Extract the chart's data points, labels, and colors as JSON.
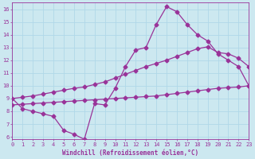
{
  "x": [
    0,
    1,
    2,
    3,
    4,
    5,
    6,
    7,
    8,
    9,
    10,
    11,
    12,
    13,
    14,
    15,
    16,
    17,
    18,
    19,
    20,
    21,
    22,
    23
  ],
  "y_main": [
    9.0,
    8.2,
    8.0,
    7.8,
    7.6,
    6.5,
    6.2,
    5.8,
    8.6,
    8.5,
    9.8,
    11.5,
    12.8,
    13.0,
    14.8,
    16.2,
    15.8,
    14.8,
    14.0,
    13.5,
    12.5,
    12.0,
    11.5,
    10.0
  ],
  "y_upper": [
    9.0,
    9.1,
    9.2,
    9.35,
    9.5,
    9.65,
    9.8,
    9.9,
    10.1,
    10.3,
    10.6,
    10.9,
    11.2,
    11.5,
    11.75,
    12.0,
    12.3,
    12.6,
    12.9,
    13.05,
    12.6,
    12.5,
    12.15,
    11.5
  ],
  "y_lower": [
    8.5,
    8.55,
    8.6,
    8.65,
    8.7,
    8.75,
    8.8,
    8.85,
    8.9,
    8.95,
    9.0,
    9.05,
    9.1,
    9.15,
    9.2,
    9.3,
    9.4,
    9.5,
    9.6,
    9.7,
    9.8,
    9.85,
    9.9,
    10.0
  ],
  "line_color": "#993399",
  "bg_color": "#cce8f0",
  "xlabel": "Windchill (Refroidissement éolien,°C)",
  "xlim": [
    0,
    23
  ],
  "ylim": [
    5.8,
    16.5
  ],
  "yticks": [
    6,
    7,
    8,
    9,
    10,
    11,
    12,
    13,
    14,
    15,
    16
  ],
  "xticks": [
    0,
    1,
    2,
    3,
    4,
    5,
    6,
    7,
    8,
    9,
    10,
    11,
    12,
    13,
    14,
    15,
    16,
    17,
    18,
    19,
    20,
    21,
    22,
    23
  ],
  "grid_color": "#b0d8e8",
  "marker": "D",
  "markersize": 2.5,
  "linewidth": 0.9
}
